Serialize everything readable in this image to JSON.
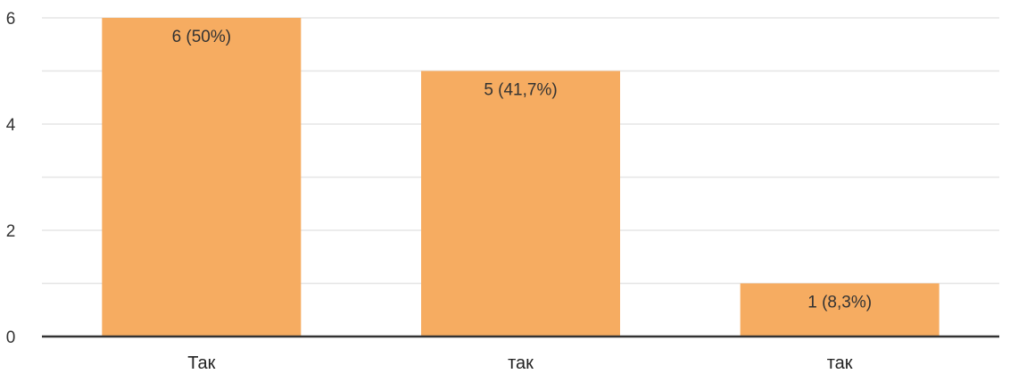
{
  "chart_data": {
    "type": "bar",
    "title": "",
    "xlabel": "",
    "ylabel": "",
    "categories": [
      "Так",
      "так",
      "так"
    ],
    "values": [
      6,
      5,
      1
    ],
    "data_labels": [
      "6 (50%)",
      "5 (41,7%)",
      "1 (8,3%)"
    ],
    "ylim": [
      0,
      6
    ],
    "yticks": [
      0,
      2,
      4,
      6
    ],
    "minor_grid": [
      1,
      3,
      5
    ],
    "grid": true,
    "legend": "none",
    "colors": {
      "bar": "#F6AC61",
      "grid": "#e6e6e6",
      "axis": "#333333"
    }
  }
}
